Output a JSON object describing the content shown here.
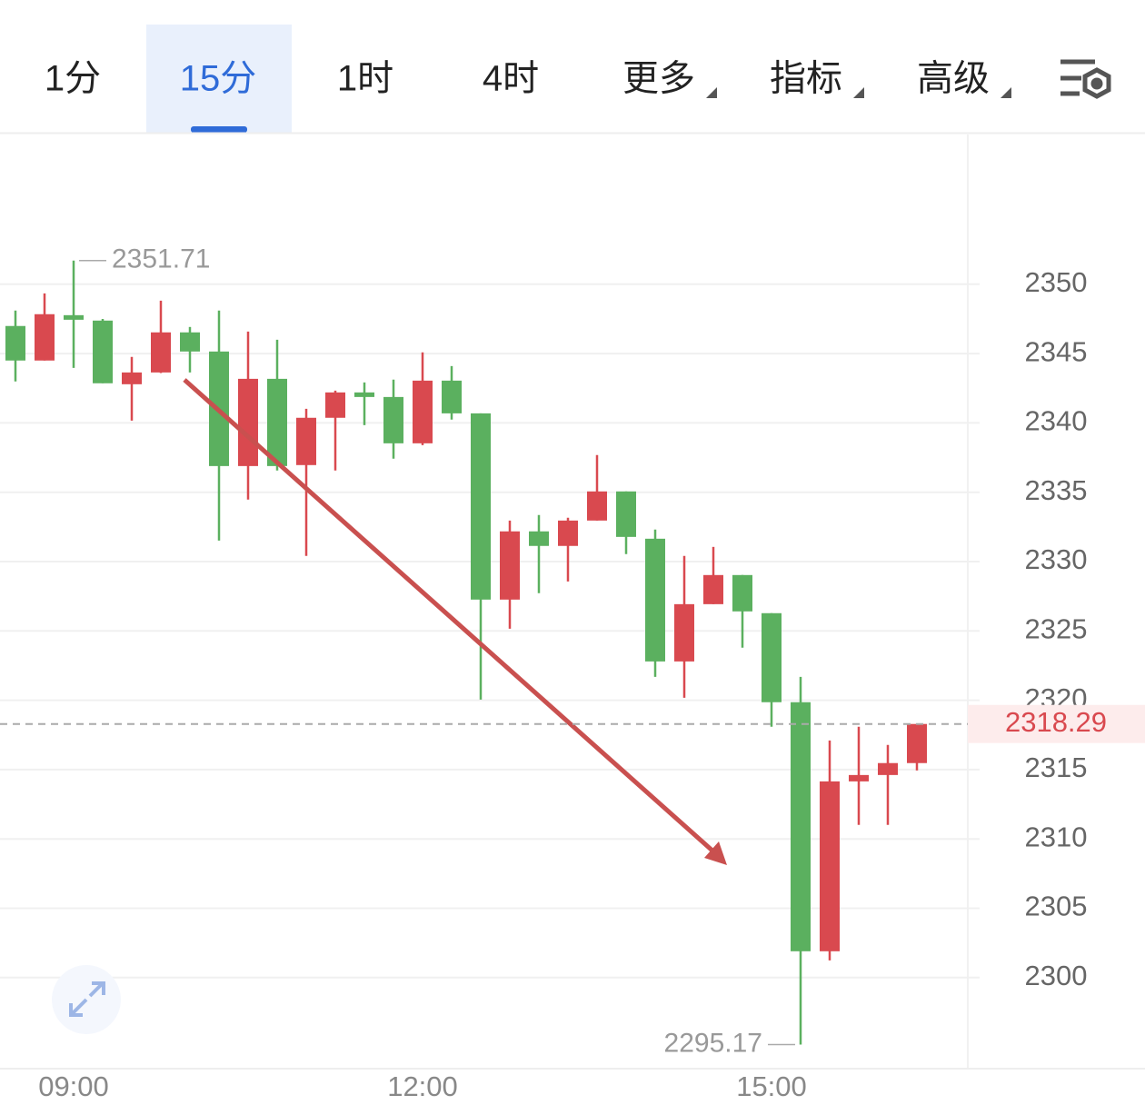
{
  "tabs": [
    "1分",
    "15分",
    "1时",
    "4时",
    "更多",
    "指标",
    "高级"
  ],
  "active_tab": 1,
  "chart_data": {
    "type": "candlestick",
    "categories": [
      null,
      null,
      "09:00",
      null,
      null,
      null,
      null,
      null,
      null,
      null,
      null,
      null,
      null,
      null,
      "12:00",
      null,
      null,
      null,
      null,
      null,
      null,
      null,
      null,
      null,
      null,
      null,
      "15:00",
      null,
      null,
      null,
      null,
      null
    ],
    "open": [
      2346.99,
      2344.5,
      2347.77,
      2347.38,
      2342.79,
      2343.64,
      2346.53,
      2345.15,
      2336.89,
      2343.18,
      2336.96,
      2340.37,
      2342.2,
      2341.87,
      2338.53,
      2343.05,
      2340.69,
      2327.26,
      2332.18,
      2331.13,
      2332.96,
      2335.06,
      2331.65,
      2322.8,
      2326.93,
      2329.03,
      2326.28,
      2319.86,
      2301.9,
      2314.15,
      2314.61,
      2315.47
    ],
    "high": [
      2348.1,
      2349.34,
      2351.71,
      2347.5,
      2344.76,
      2348.82,
      2346.92,
      2348.1,
      2346.59,
      2346.0,
      2341.02,
      2342.33,
      2342.92,
      2343.12,
      2345.09,
      2344.1,
      2340.69,
      2332.96,
      2333.36,
      2333.16,
      2337.68,
      2335.06,
      2332.31,
      2330.41,
      2331.06,
      2329.03,
      2326.28,
      2321.69,
      2317.1,
      2318.09,
      2316.78,
      2318.29
    ],
    "low": [
      2342.99,
      2344.5,
      2343.97,
      2342.86,
      2340.17,
      2343.6,
      2343.64,
      2331.52,
      2334.47,
      2336.57,
      2330.41,
      2336.57,
      2339.84,
      2337.42,
      2338.4,
      2340.24,
      2320.05,
      2325.16,
      2327.72,
      2328.57,
      2332.96,
      2330.54,
      2321.69,
      2320.18,
      2326.93,
      2323.79,
      2318.09,
      2295.17,
      2301.24,
      2311.01,
      2311.01,
      2314.94
    ],
    "close": [
      2344.5,
      2347.84,
      2347.44,
      2342.86,
      2343.64,
      2346.53,
      2345.15,
      2336.89,
      2343.18,
      2336.89,
      2340.37,
      2342.2,
      2341.87,
      2338.53,
      2343.05,
      2340.69,
      2327.26,
      2332.18,
      2331.13,
      2332.96,
      2335.06,
      2331.78,
      2322.8,
      2326.93,
      2329.03,
      2326.41,
      2319.86,
      2301.9,
      2314.15,
      2314.61,
      2315.47,
      2318.29
    ],
    "up_color": "#d9494f",
    "down_color": "#5bb05f",
    "ylim": [
      2293.5,
      2360.8
    ],
    "yticks": [
      2300,
      2305,
      2310,
      2315,
      2320,
      2325,
      2330,
      2335,
      2340,
      2345,
      2350
    ],
    "grid": true
  }
}
